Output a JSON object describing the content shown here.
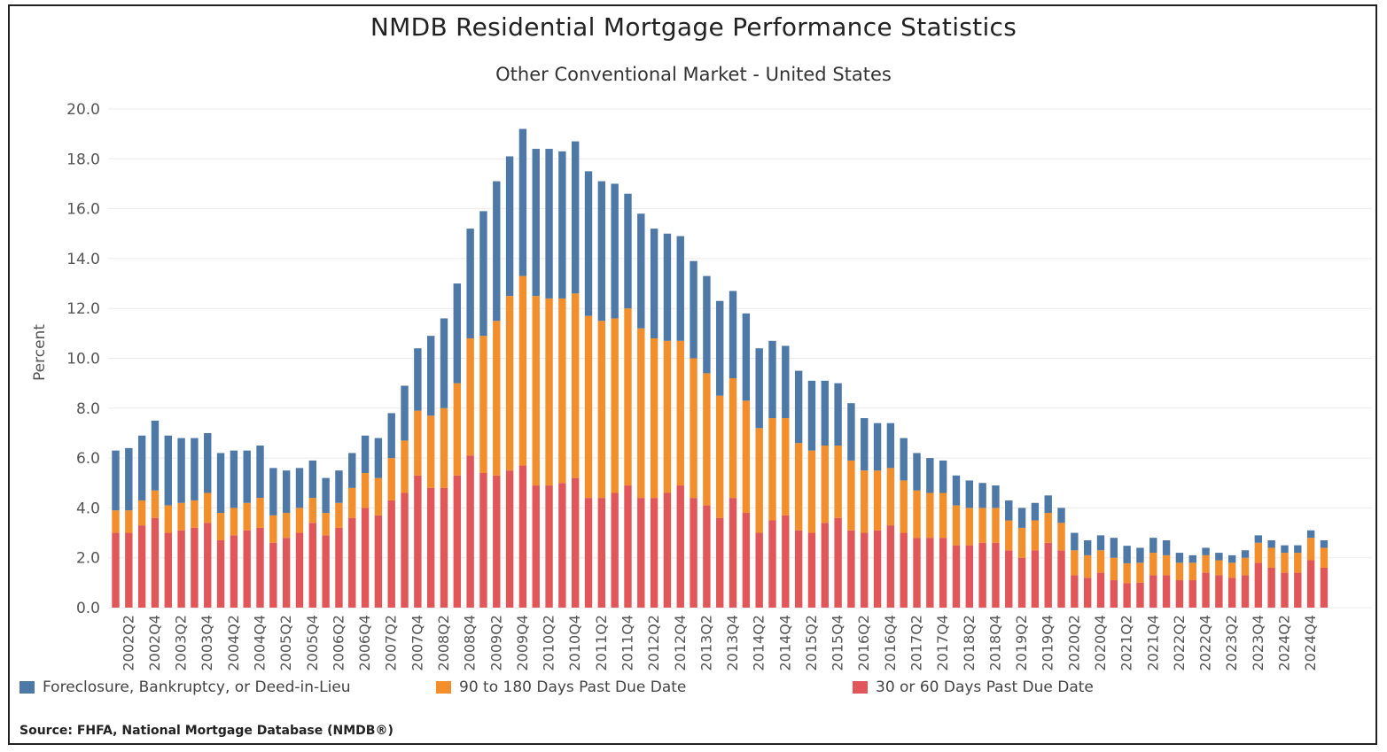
{
  "title": "NMDB Residential Mortgage Performance Statistics",
  "subtitle": "Other Conventional Market - United States",
  "source": "Source:  FHFA, National Mortgage Database (NMDB®)",
  "colors": {
    "foreclosure": "#4e79a7",
    "days90": "#f28e2b",
    "days30": "#e15759",
    "grid": "#ebebeb",
    "text": "#555555"
  },
  "legend": {
    "foreclosure": "Foreclosure, Bankruptcy, or Deed-in-Lieu",
    "days90": "90 to 180 Days Past Due Date",
    "days30": "30 or 60 Days Past Due Date"
  },
  "chart_data": {
    "type": "bar",
    "stacked": true,
    "title": "NMDB Residential Mortgage Performance Statistics",
    "subtitle": "Other Conventional Market - United States",
    "xlabel": "",
    "ylabel": "Percent",
    "ylim": [
      0,
      20
    ],
    "yticks": [
      "0.0",
      "2.0",
      "4.0",
      "6.0",
      "8.0",
      "10.0",
      "12.0",
      "14.0",
      "16.0",
      "18.0",
      "20.0"
    ],
    "xtick_labels": [
      "2002Q2",
      "2002Q4",
      "2003Q2",
      "2003Q4",
      "2004Q2",
      "2004Q4",
      "2005Q2",
      "2005Q4",
      "2006Q2",
      "2006Q4",
      "2007Q2",
      "2007Q4",
      "2008Q2",
      "2008Q4",
      "2009Q2",
      "2009Q4",
      "2010Q2",
      "2010Q4",
      "2011Q2",
      "2011Q4",
      "2012Q2",
      "2012Q4",
      "2013Q2",
      "2013Q4",
      "2014Q2",
      "2014Q4",
      "2015Q2",
      "2015Q4",
      "2016Q2",
      "2016Q4",
      "2017Q2",
      "2017Q4",
      "2018Q2",
      "2018Q4",
      "2019Q2",
      "2019Q4",
      "2020Q2",
      "2020Q4",
      "2021Q2",
      "2021Q4",
      "2022Q2",
      "2022Q4",
      "2023Q2",
      "2023Q4",
      "2024Q2",
      "2024Q4"
    ],
    "first_quarter": "2002Q1",
    "legend_position": "bottom",
    "grid": true,
    "series": [
      {
        "name": "30 or 60 Days Past Due Date",
        "key": "days30",
        "values": [
          3.0,
          3.0,
          3.3,
          3.6,
          3.0,
          3.1,
          3.2,
          3.4,
          2.7,
          2.9,
          3.1,
          3.2,
          2.6,
          2.8,
          3.0,
          3.4,
          2.9,
          3.2,
          3.6,
          4.0,
          3.7,
          4.3,
          4.6,
          5.3,
          4.8,
          4.8,
          5.3,
          6.1,
          5.4,
          5.3,
          5.5,
          5.7,
          4.9,
          4.9,
          5.0,
          5.2,
          4.4,
          4.4,
          4.6,
          4.9,
          4.4,
          4.4,
          4.6,
          4.9,
          4.4,
          4.1,
          3.6,
          4.4,
          3.8,
          3.0,
          3.5,
          3.7,
          3.1,
          3.0,
          3.4,
          3.6,
          3.1,
          3.0,
          3.1,
          3.3,
          3.0,
          2.8,
          2.8,
          2.8,
          2.5,
          2.5,
          2.6,
          2.6,
          2.3,
          2.0,
          2.3,
          2.6,
          2.3,
          1.3,
          1.2,
          1.4,
          1.1,
          0.98,
          1.0,
          1.3,
          1.3,
          1.1,
          1.1,
          1.4,
          1.3,
          1.2,
          1.3,
          1.8,
          1.6,
          1.4,
          1.4,
          1.9,
          1.6
        ]
      },
      {
        "name": "90 to 180 Days Past Due Date",
        "key": "days90",
        "values": [
          0.9,
          0.9,
          1.0,
          1.1,
          1.1,
          1.1,
          1.1,
          1.2,
          1.1,
          1.1,
          1.1,
          1.2,
          1.1,
          1.0,
          1.0,
          1.0,
          0.9,
          1.0,
          1.2,
          1.4,
          1.5,
          1.7,
          2.1,
          2.6,
          2.9,
          3.2,
          3.7,
          4.7,
          5.5,
          6.2,
          7.0,
          7.6,
          7.6,
          7.5,
          7.4,
          7.4,
          7.3,
          7.1,
          7.0,
          7.1,
          6.8,
          6.4,
          6.1,
          5.8,
          5.6,
          5.3,
          4.9,
          4.8,
          4.5,
          4.2,
          4.1,
          3.9,
          3.5,
          3.3,
          3.1,
          2.9,
          2.8,
          2.5,
          2.4,
          2.3,
          2.1,
          1.9,
          1.8,
          1.8,
          1.6,
          1.5,
          1.4,
          1.4,
          1.2,
          1.2,
          1.2,
          1.2,
          1.1,
          1.0,
          0.9,
          0.9,
          0.9,
          0.8,
          0.8,
          0.9,
          0.8,
          0.7,
          0.7,
          0.7,
          0.6,
          0.6,
          0.7,
          0.8,
          0.8,
          0.8,
          0.8,
          0.9,
          0.8
        ]
      },
      {
        "name": "Foreclosure, Bankruptcy, or Deed-in-Lieu",
        "key": "foreclosure",
        "values": [
          2.4,
          2.5,
          2.6,
          2.8,
          2.8,
          2.6,
          2.5,
          2.4,
          2.4,
          2.3,
          2.1,
          2.1,
          1.9,
          1.7,
          1.6,
          1.5,
          1.4,
          1.3,
          1.4,
          1.5,
          1.6,
          1.8,
          2.2,
          2.5,
          3.2,
          3.6,
          4.0,
          4.4,
          5.0,
          5.6,
          5.6,
          5.9,
          5.9,
          6.0,
          5.9,
          6.1,
          5.8,
          5.6,
          5.4,
          4.6,
          4.6,
          4.4,
          4.3,
          4.2,
          3.9,
          3.9,
          3.8,
          3.5,
          3.5,
          3.2,
          3.1,
          2.9,
          2.9,
          2.8,
          2.6,
          2.5,
          2.3,
          2.1,
          1.9,
          1.8,
          1.7,
          1.5,
          1.4,
          1.3,
          1.2,
          1.1,
          1.0,
          0.9,
          0.8,
          0.8,
          0.7,
          0.7,
          0.6,
          0.7,
          0.6,
          0.6,
          0.8,
          0.7,
          0.6,
          0.6,
          0.6,
          0.4,
          0.3,
          0.3,
          0.3,
          0.3,
          0.3,
          0.3,
          0.3,
          0.3,
          0.3,
          0.3,
          0.3
        ]
      }
    ]
  }
}
